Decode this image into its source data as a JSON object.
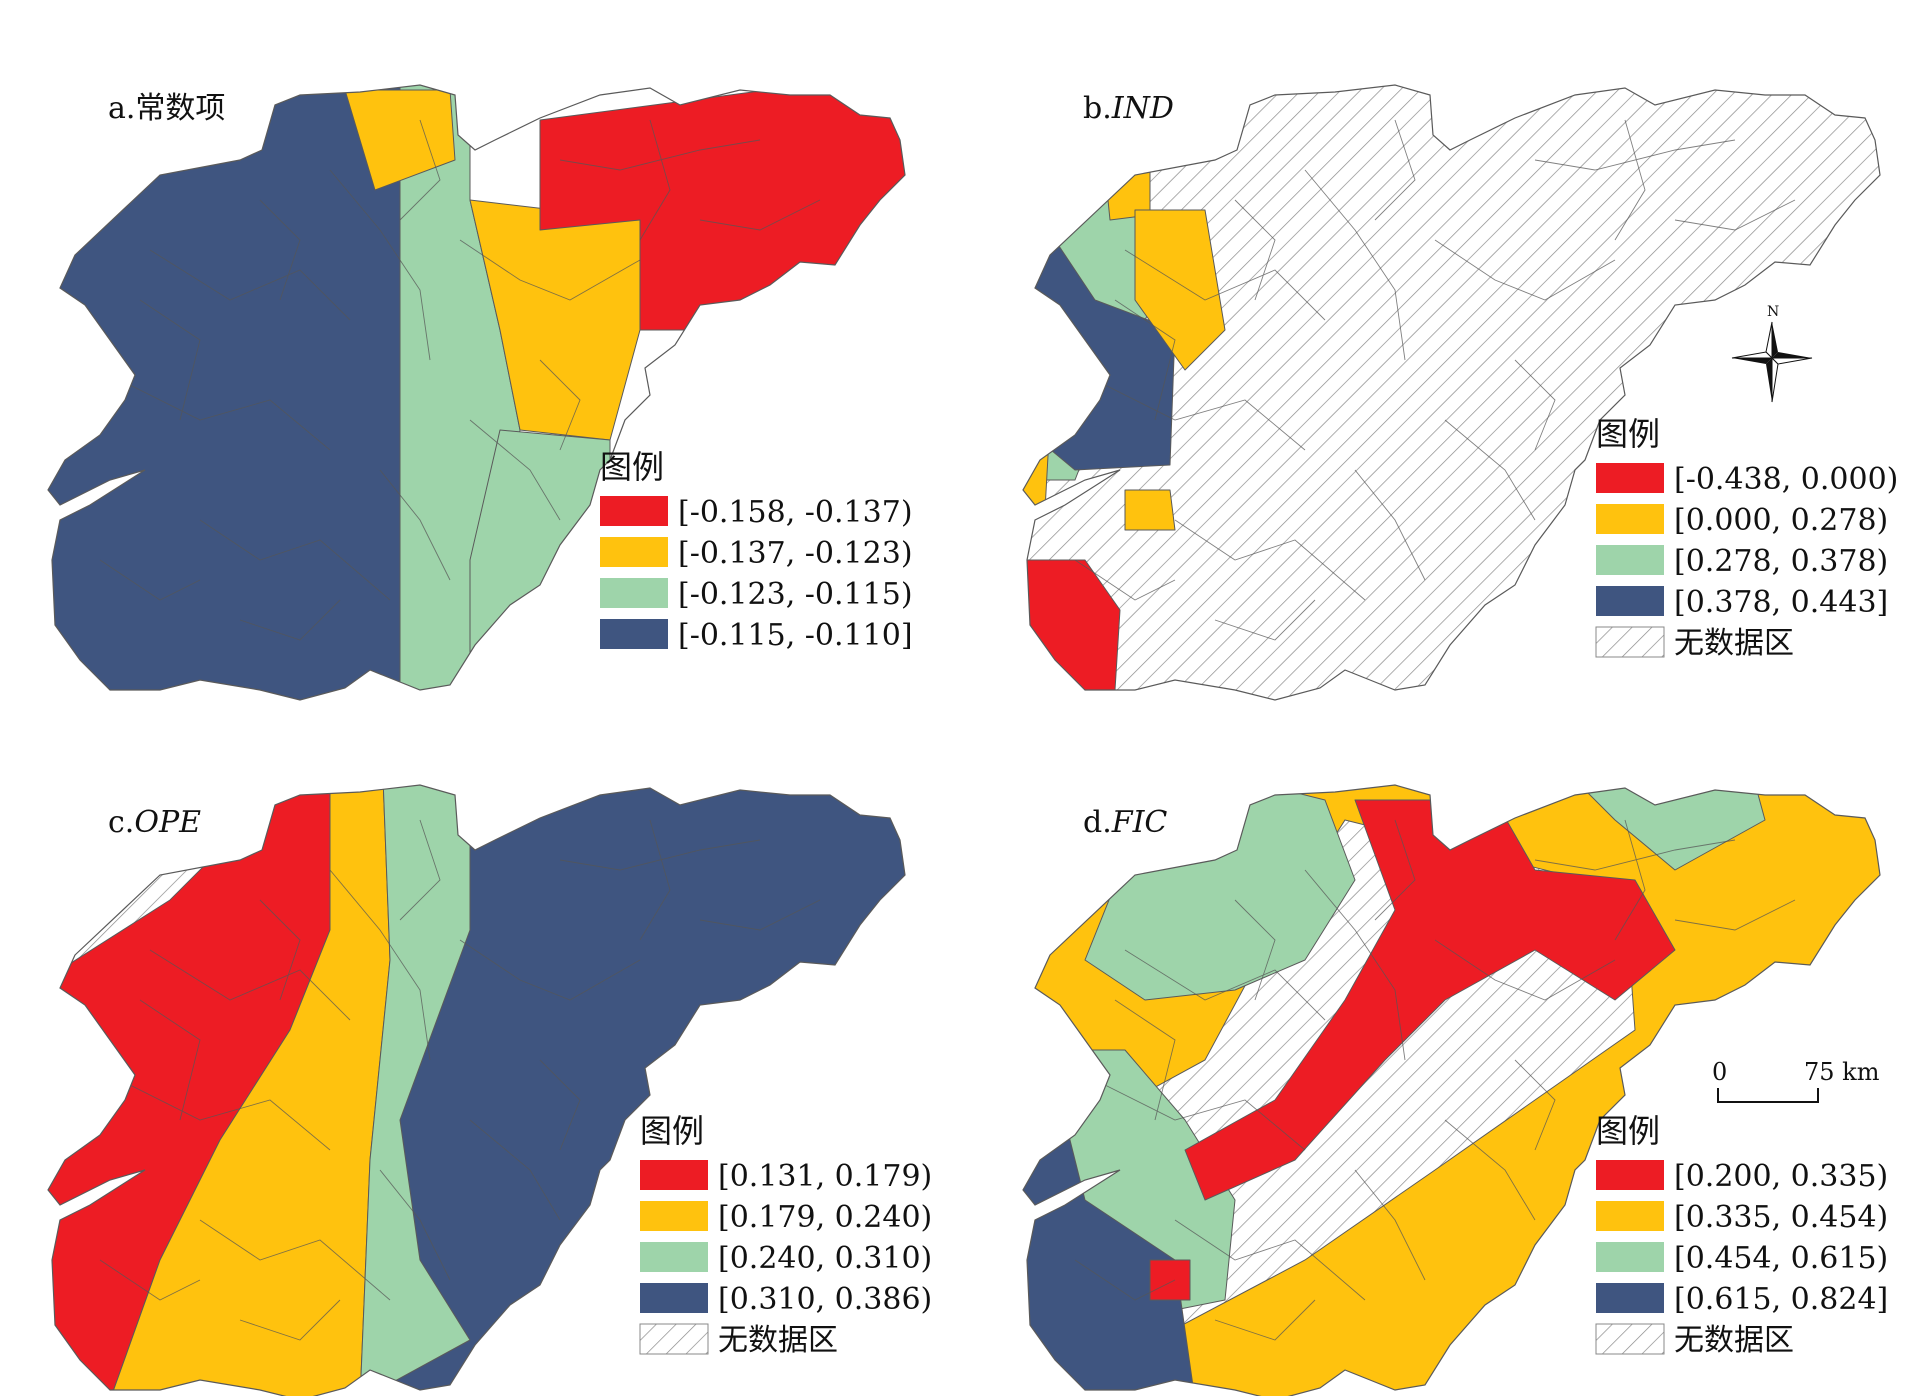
{
  "colors": {
    "red": "#ED1C24",
    "yellow": "#FFC20E",
    "green": "#9ED4AA",
    "blue": "#3F5580",
    "nodata_hatch": "#8a8a8a",
    "outline": "#5a5a5a"
  },
  "panels": [
    {
      "id": "a",
      "prefix": "a.",
      "title": "常数项",
      "italic": false,
      "legend": {
        "title": "图例",
        "items": [
          {
            "label": "[-0.158, -0.137)",
            "color": "red"
          },
          {
            "label": "[-0.137, -0.123)",
            "color": "yellow"
          },
          {
            "label": "[-0.123, -0.115)",
            "color": "green"
          },
          {
            "label": "[-0.115, -0.110]",
            "color": "blue"
          }
        ]
      }
    },
    {
      "id": "b",
      "prefix": "b.",
      "title": "IND",
      "italic": true,
      "legend": {
        "title": "图例",
        "items": [
          {
            "label": "[-0.438, 0.000)",
            "color": "red"
          },
          {
            "label": "[0.000, 0.278)",
            "color": "yellow"
          },
          {
            "label": "[0.278, 0.378)",
            "color": "green"
          },
          {
            "label": "[0.378, 0.443]",
            "color": "blue"
          },
          {
            "label": "无数据区",
            "color": "nodata"
          }
        ]
      }
    },
    {
      "id": "c",
      "prefix": "c.",
      "title": "OPE",
      "italic": true,
      "legend": {
        "title": "图例",
        "items": [
          {
            "label": "[0.131, 0.179)",
            "color": "red"
          },
          {
            "label": "[0.179, 0.240)",
            "color": "yellow"
          },
          {
            "label": "[0.240, 0.310)",
            "color": "green"
          },
          {
            "label": "[0.310, 0.386)",
            "color": "blue"
          },
          {
            "label": "无数据区",
            "color": "nodata"
          }
        ]
      }
    },
    {
      "id": "d",
      "prefix": "d.",
      "title": "FIC",
      "italic": true,
      "legend": {
        "title": "图例",
        "items": [
          {
            "label": "[0.200, 0.335)",
            "color": "red"
          },
          {
            "label": "[0.335, 0.454)",
            "color": "yellow"
          },
          {
            "label": "[0.454, 0.615)",
            "color": "green"
          },
          {
            "label": "[0.615, 0.824]",
            "color": "blue"
          },
          {
            "label": "无数据区",
            "color": "nodata"
          }
        ]
      }
    }
  ],
  "north_arrow": {
    "label": "N"
  },
  "scale_bar": {
    "start": "0",
    "end": "75 km"
  }
}
